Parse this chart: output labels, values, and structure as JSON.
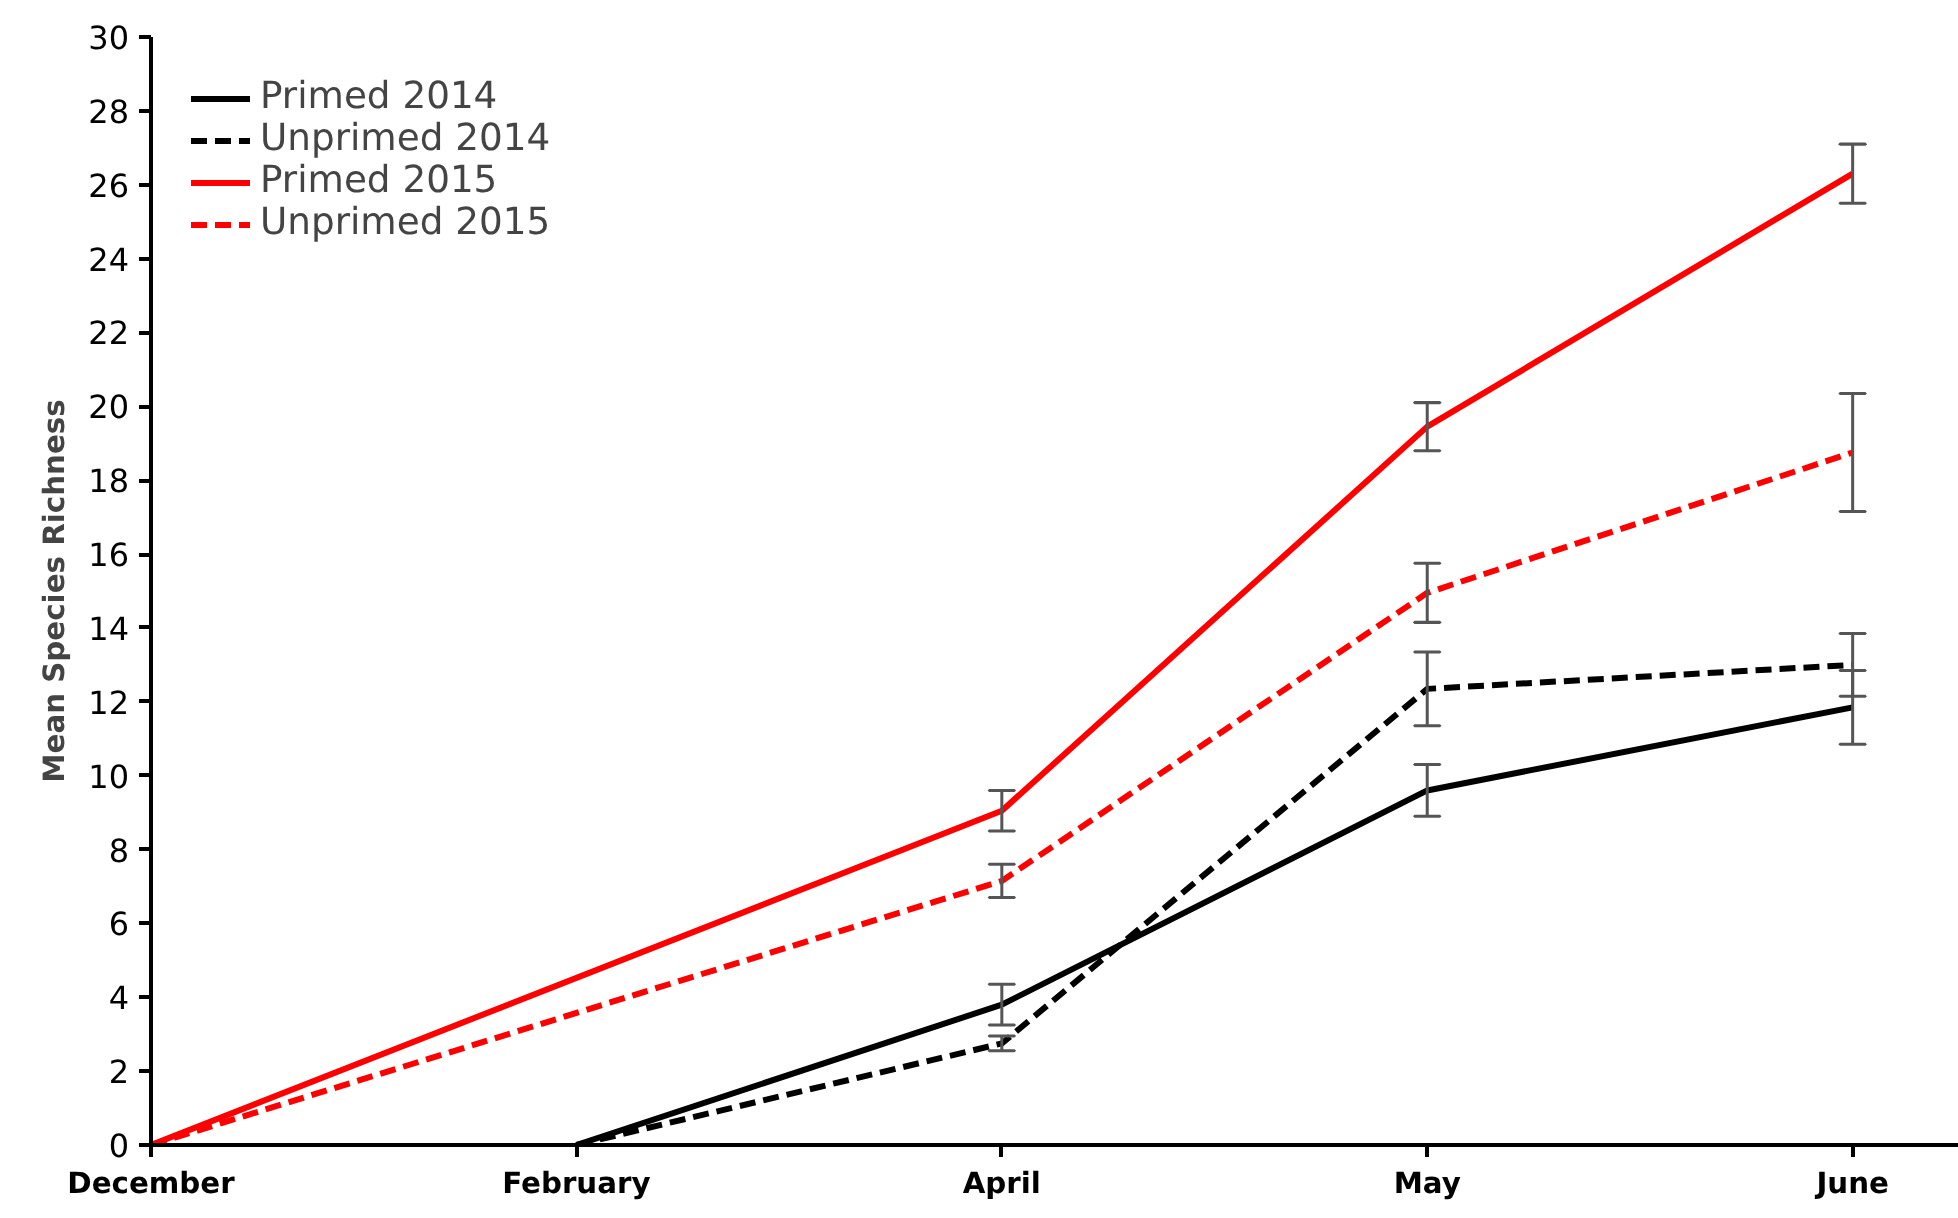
{
  "chart_data": {
    "type": "line",
    "ylabel": "Mean Species Richness",
    "categories": [
      "December",
      "February",
      "April",
      "May",
      "June"
    ],
    "ylim": [
      0,
      30
    ],
    "yticks": [
      0,
      2,
      4,
      6,
      8,
      10,
      12,
      14,
      16,
      18,
      20,
      22,
      24,
      26,
      28,
      30
    ],
    "grid": false,
    "legend": "top left",
    "marker": "none",
    "series": [
      {
        "name": "Primed 2014",
        "color": "#000000",
        "line_style": "solid",
        "values": [
          null,
          0,
          3.8,
          9.6,
          11.85
        ],
        "errors": [
          null,
          null,
          0.55,
          0.7,
          1.0
        ]
      },
      {
        "name": "Unprimed 2014",
        "color": "#000000",
        "line_style": "dashed",
        "values": [
          null,
          0,
          2.75,
          12.35,
          13.0
        ],
        "errors": [
          null,
          null,
          0.2,
          1.0,
          0.85
        ]
      },
      {
        "name": "Primed 2015",
        "color": "#ff0000",
        "line_style": "solid",
        "values": [
          0,
          null,
          9.05,
          19.45,
          26.3
        ],
        "errors": [
          null,
          null,
          0.55,
          0.65,
          0.8
        ]
      },
      {
        "name": "Unprimed 2015",
        "color": "#ff0000",
        "line_style": "dashed",
        "values": [
          0,
          null,
          7.15,
          14.95,
          18.75
        ],
        "errors": [
          null,
          null,
          0.45,
          0.8,
          1.6
        ]
      }
    ]
  }
}
